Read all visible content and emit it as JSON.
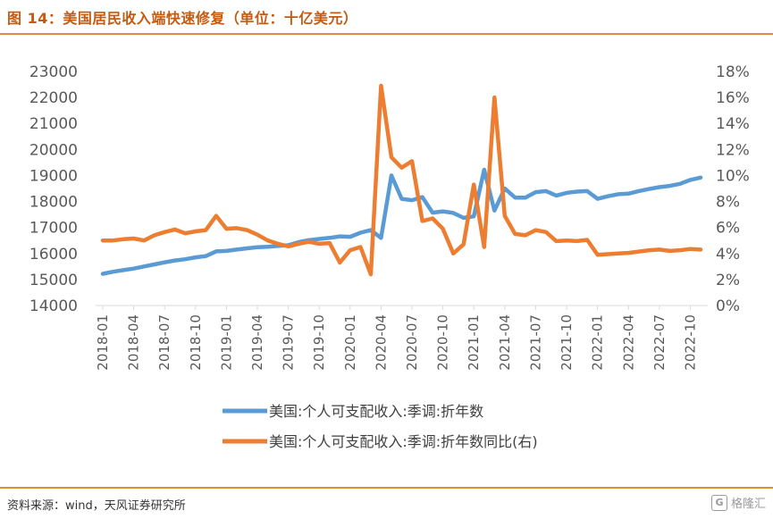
{
  "header": {
    "title": "图 14：美国居民收入端快速修复（单位：十亿美元）"
  },
  "footer": {
    "source": "资料来源：wind，天风证券研究所",
    "watermark": "格隆汇"
  },
  "colors": {
    "series_income": "#5b9bd5",
    "series_yoy": "#ed7d31",
    "accent": "#c55a11",
    "rule": "#e58a3c"
  },
  "chart_data": {
    "type": "line",
    "title": "",
    "xlabel": "",
    "ylabel": "",
    "ylim": [
      14000,
      23000
    ],
    "y2lim": [
      0,
      18
    ],
    "yticks": [
      14000,
      15000,
      16000,
      17000,
      18000,
      19000,
      20000,
      21000,
      22000,
      23000
    ],
    "y2ticks": [
      "0%",
      "2%",
      "4%",
      "6%",
      "8%",
      "10%",
      "12%",
      "14%",
      "16%",
      "18%"
    ],
    "x": [
      "2018-01",
      "2018-02",
      "2018-03",
      "2018-04",
      "2018-05",
      "2018-06",
      "2018-07",
      "2018-08",
      "2018-09",
      "2018-10",
      "2018-11",
      "2018-12",
      "2019-01",
      "2019-02",
      "2019-03",
      "2019-04",
      "2019-05",
      "2019-06",
      "2019-07",
      "2019-08",
      "2019-09",
      "2019-10",
      "2019-11",
      "2019-12",
      "2020-01",
      "2020-02",
      "2020-03",
      "2020-04",
      "2020-05",
      "2020-06",
      "2020-07",
      "2020-08",
      "2020-09",
      "2020-10",
      "2020-11",
      "2020-12",
      "2021-01",
      "2021-02",
      "2021-03",
      "2021-04",
      "2021-05",
      "2021-06",
      "2021-07",
      "2021-08",
      "2021-09",
      "2021-10",
      "2021-11",
      "2021-12",
      "2022-01",
      "2022-02",
      "2022-03",
      "2022-04",
      "2022-05",
      "2022-06",
      "2022-07",
      "2022-08",
      "2022-09",
      "2022-10",
      "2022-11"
    ],
    "xtick_labels": [
      "2018-01",
      "2018-04",
      "2018-07",
      "2018-10",
      "2019-01",
      "2019-04",
      "2019-07",
      "2019-10",
      "2020-01",
      "2020-04",
      "2020-07",
      "2020-10",
      "2021-01",
      "2021-04",
      "2021-07",
      "2021-10",
      "2022-01",
      "2022-04",
      "2022-07",
      "2022-10"
    ],
    "series": [
      {
        "name": "美国:个人可支配收入:季调:折年数",
        "axis": "left",
        "values": [
          15220,
          15300,
          15360,
          15420,
          15500,
          15580,
          15660,
          15730,
          15780,
          15850,
          15900,
          16080,
          16100,
          16150,
          16200,
          16240,
          16260,
          16290,
          16320,
          16440,
          16510,
          16560,
          16600,
          16660,
          16640,
          16800,
          16900,
          16600,
          19000,
          18100,
          18050,
          18170,
          17570,
          17620,
          17560,
          17370,
          17430,
          19220,
          17650,
          18500,
          18150,
          18150,
          18360,
          18400,
          18230,
          18330,
          18380,
          18400,
          18100,
          18200,
          18280,
          18300,
          18400,
          18480,
          18550,
          18600,
          18680,
          18830,
          18920
        ]
      },
      {
        "name": "美国:个人可支配收入:季调:折年数同比(右)",
        "axis": "right",
        "values": [
          5.0,
          5.0,
          5.1,
          5.15,
          5.0,
          5.4,
          5.65,
          5.85,
          5.55,
          5.7,
          5.8,
          6.9,
          5.9,
          5.95,
          5.8,
          5.45,
          5.0,
          4.75,
          4.55,
          4.75,
          4.9,
          4.75,
          4.8,
          3.3,
          4.25,
          4.5,
          2.4,
          16.9,
          11.4,
          10.6,
          11.1,
          6.5,
          6.7,
          5.9,
          4.0,
          4.7,
          9.3,
          4.5,
          16.0,
          6.9,
          5.5,
          5.4,
          5.8,
          5.65,
          4.95,
          5.0,
          4.95,
          5.05,
          3.9,
          3.95,
          4.0,
          4.05,
          4.15,
          4.25,
          4.3,
          4.2,
          4.25,
          4.35,
          4.3
        ]
      }
    ],
    "legend_position": "bottom"
  }
}
